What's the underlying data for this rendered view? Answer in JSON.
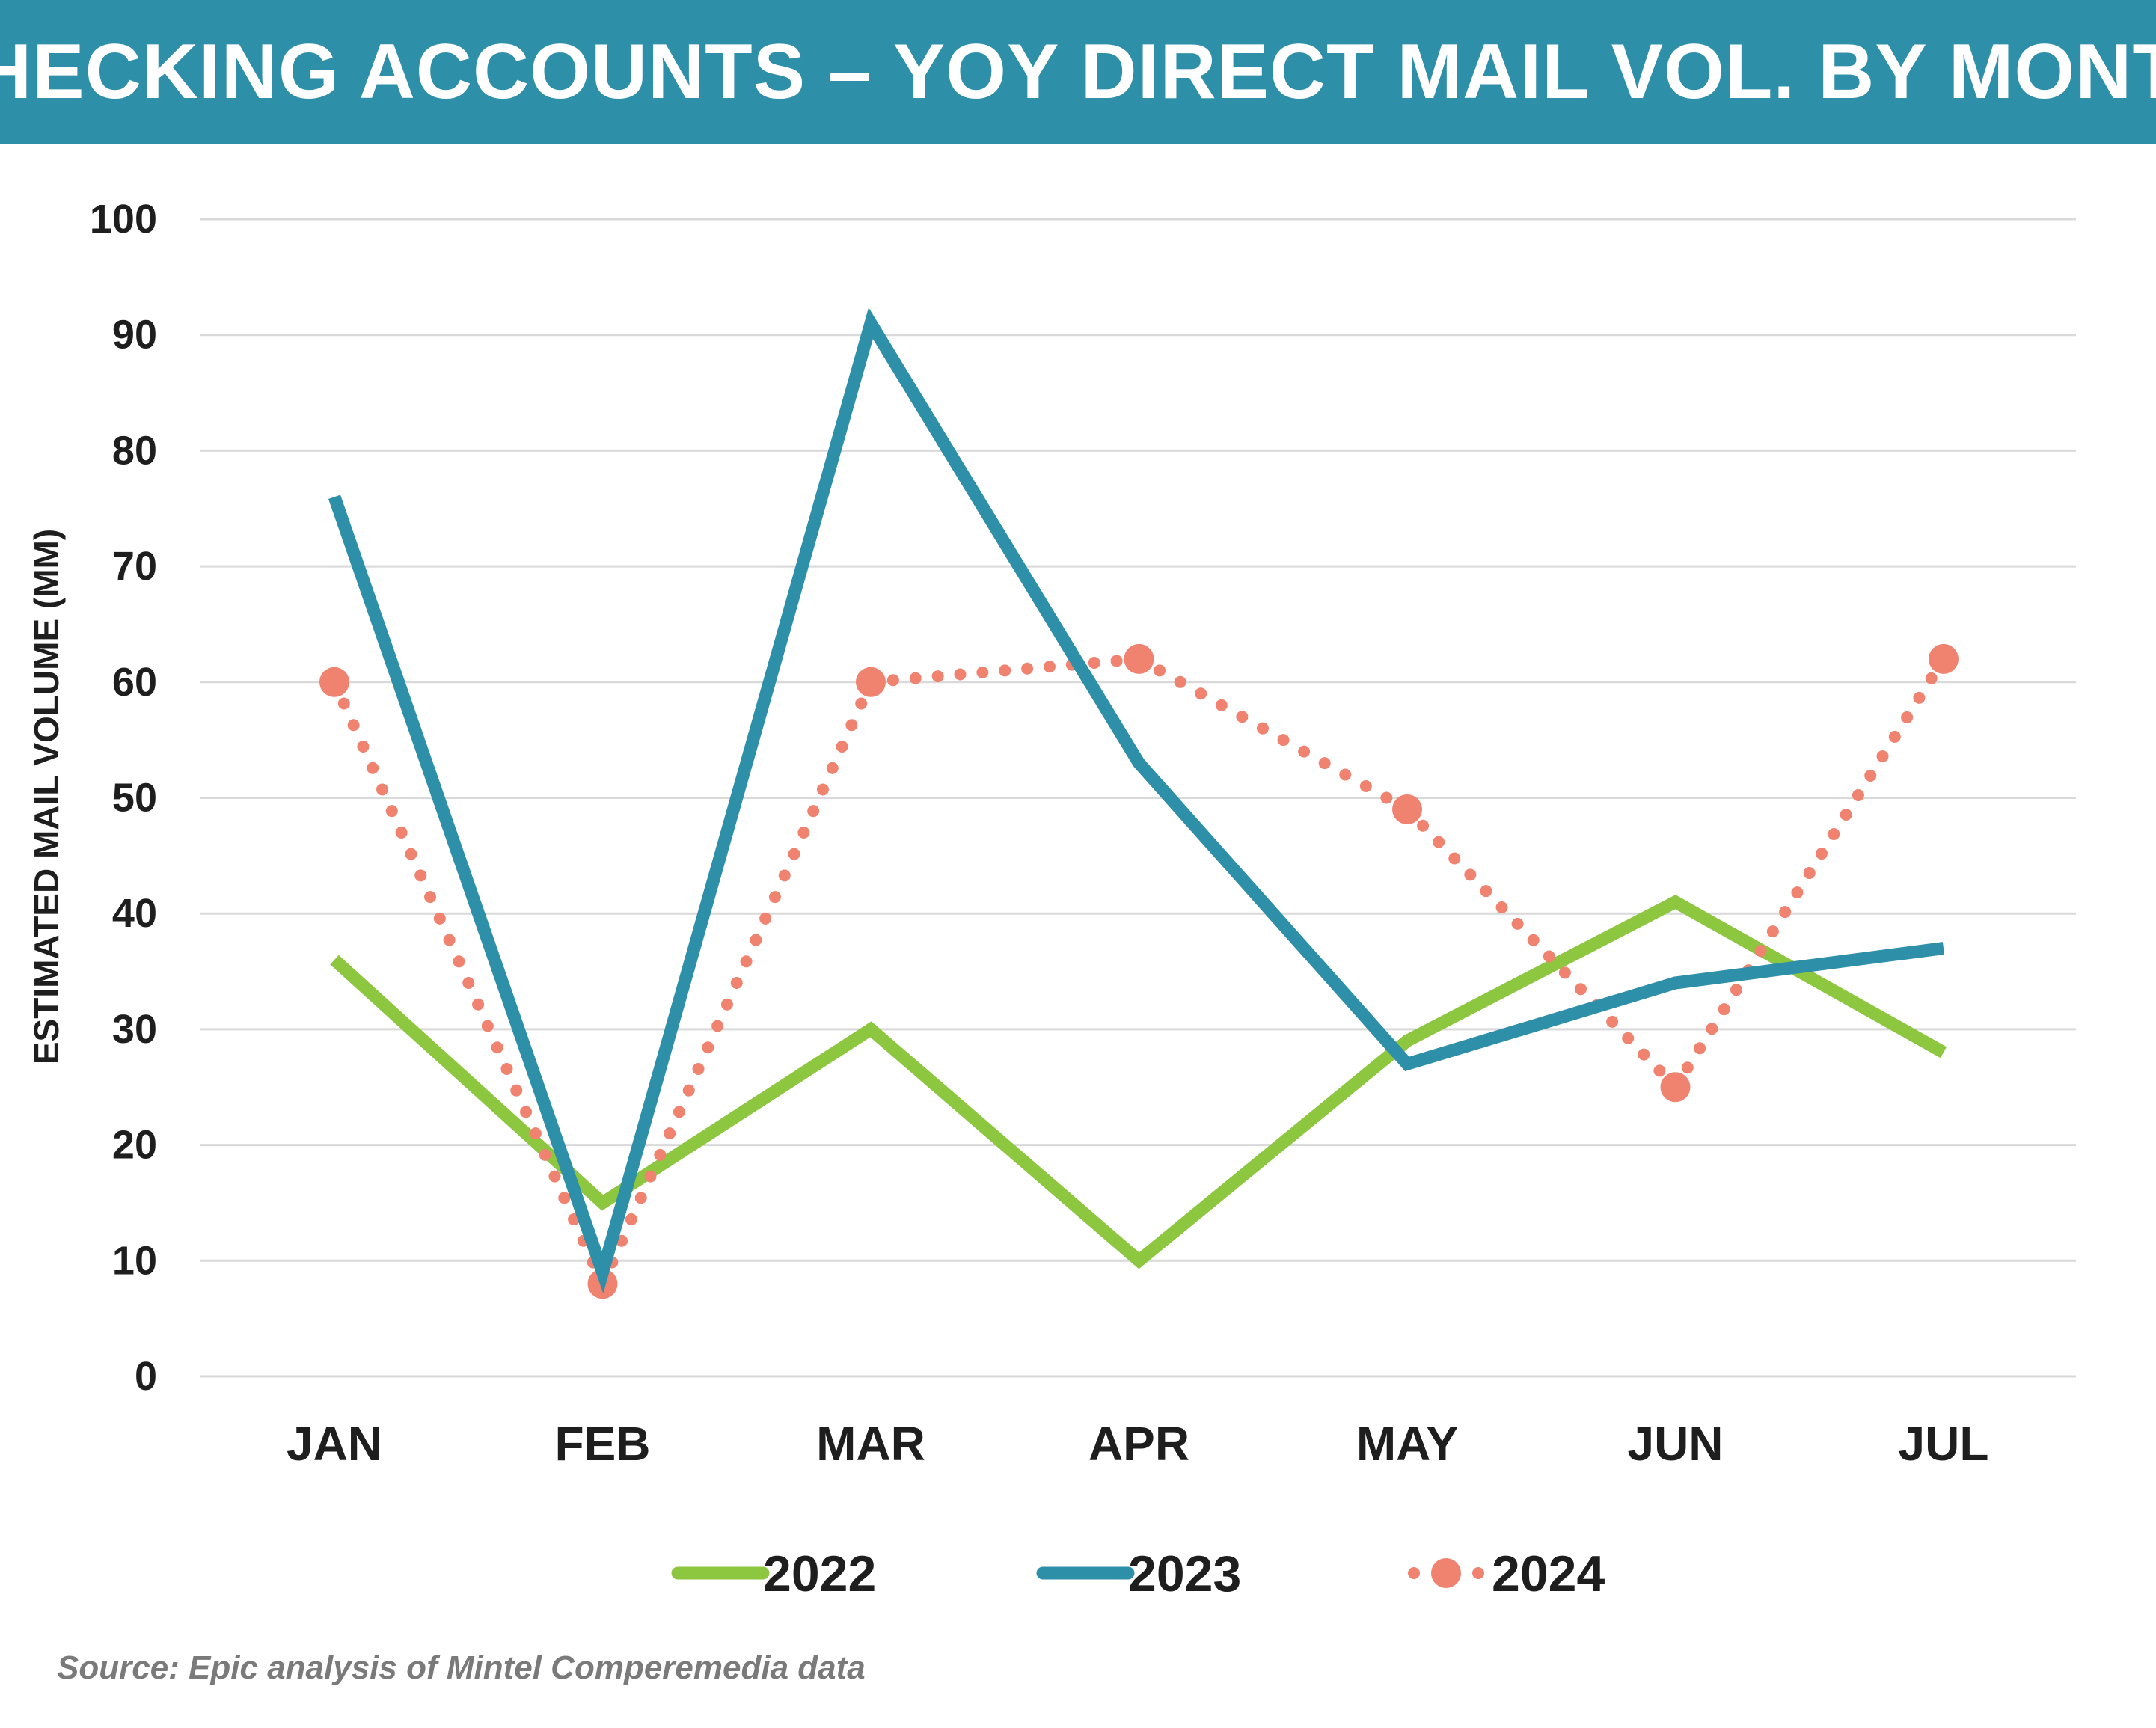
{
  "chart_data": {
    "type": "line",
    "title": "CHECKING ACCOUNTS – YOY DIRECT MAIL VOL. BY MONTH",
    "xlabel": "",
    "ylabel": "ESTIMATED MAIL VOLUME (MM)",
    "categories": [
      "JAN",
      "FEB",
      "MAR",
      "APR",
      "MAY",
      "JUN",
      "JUL"
    ],
    "ylim": [
      0,
      100
    ],
    "yticks": [
      "0",
      "10",
      "20",
      "30",
      "40",
      "50",
      "60",
      "70",
      "80",
      "90",
      "100"
    ],
    "grid": "horizontal",
    "legend_position": "bottom",
    "series": [
      {
        "name": "2022",
        "values": [
          36,
          15,
          30,
          10,
          29,
          41,
          28
        ],
        "color": "#8dc63f",
        "style": "solid"
      },
      {
        "name": "2023",
        "values": [
          76,
          9,
          91,
          53,
          27,
          34,
          37
        ],
        "color": "#2e8fa9",
        "style": "solid"
      },
      {
        "name": "2024",
        "values": [
          60,
          8,
          60,
          62,
          49,
          25,
          62
        ],
        "color": "#f08270",
        "style": "dotted-with-markers"
      }
    ],
    "source": "Source: Epic analysis of Mintel Comperemedia data"
  }
}
